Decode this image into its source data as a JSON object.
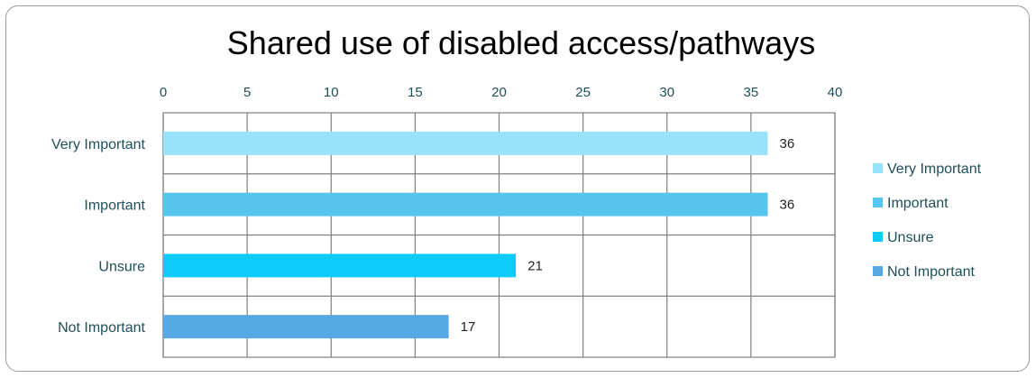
{
  "chart_data": {
    "type": "bar",
    "orientation": "horizontal",
    "title": "Shared use of disabled access/pathways",
    "categories": [
      "Very Important",
      "Important",
      "Unsure",
      "Not Important"
    ],
    "values": [
      36,
      36,
      21,
      17
    ],
    "colors": [
      "#99e3fa",
      "#57c6ee",
      "#0ccbfd",
      "#57a9e6"
    ],
    "xlim": [
      0,
      40
    ],
    "xticks": [
      "0",
      "5",
      "10",
      "15",
      "20",
      "25",
      "30",
      "35",
      "40"
    ],
    "x_axis_position": "top",
    "grid": true,
    "legend": {
      "placement": "right",
      "entries": [
        "Very Important",
        "Important",
        "Unsure",
        "Not Important"
      ]
    },
    "data_labels": [
      "36",
      "36",
      "21",
      "17"
    ]
  }
}
